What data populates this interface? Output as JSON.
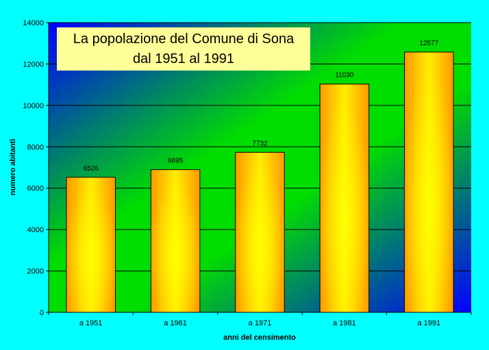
{
  "chart_data": {
    "type": "bar",
    "title_lines": [
      "La popolazione del Comune di Sona",
      "dal 1951 al 1991"
    ],
    "xlabel": "anni del censimento",
    "ylabel": "numero abitanti",
    "categories": [
      "a 1951",
      "a 1961",
      "a 1971",
      "a 1981",
      "a 1991"
    ],
    "values": [
      6526,
      6895,
      7732,
      11030,
      12577
    ],
    "data_labels": [
      "6526",
      "6895",
      "7732",
      "11030",
      "12577"
    ],
    "ylim": [
      0,
      14000
    ],
    "yticks": [
      0,
      2000,
      4000,
      6000,
      8000,
      10000,
      12000,
      14000
    ],
    "grid": true,
    "legend": "none",
    "colors": {
      "page_background": "#00FFFF",
      "plot_gradient": [
        "#0000FF",
        "#00DD00",
        "#0000FF"
      ],
      "bar_edge": "#FF9900",
      "bar_center": "#FFFF00",
      "title_box": "#FFFF99"
    }
  }
}
